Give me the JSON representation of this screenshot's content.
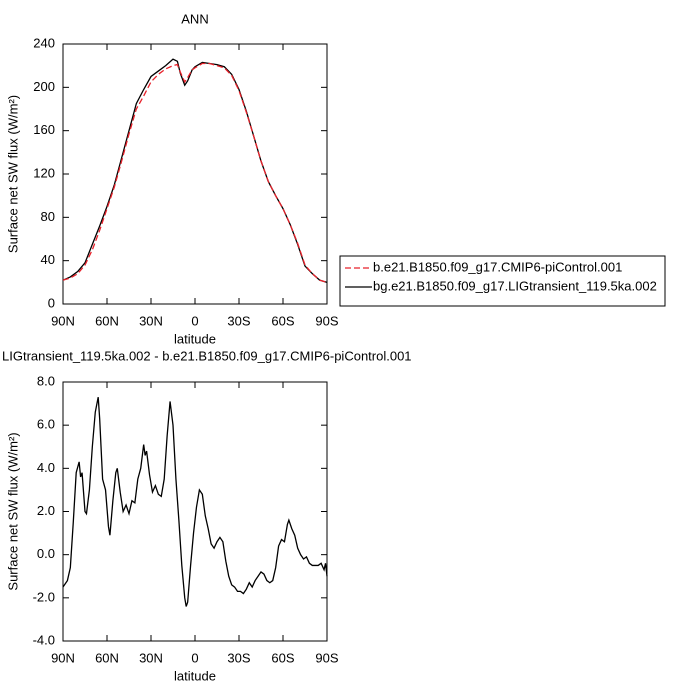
{
  "chart_data": [
    {
      "type": "line",
      "title": "ANN",
      "xlabel": "latitude",
      "ylabel": "Surface net SW flux (W/m²)",
      "x": [
        90,
        85,
        80,
        75,
        70,
        65,
        60,
        55,
        50,
        45,
        40,
        35,
        30,
        25,
        20,
        15,
        12,
        10,
        7,
        5,
        2,
        0,
        -5,
        -10,
        -15,
        -20,
        -25,
        -30,
        -35,
        -40,
        -45,
        -50,
        -55,
        -60,
        -65,
        -70,
        -75,
        -80,
        -85,
        -90
      ],
      "series": [
        {
          "name": "b.e21.B1850.f09_g17.CMIP6-piControl.001",
          "color": "#e8212a",
          "dash": true,
          "values": [
            22,
            24,
            28,
            36,
            50,
            68,
            88,
            108,
            132,
            157,
            180,
            192,
            205,
            212,
            217,
            220,
            221,
            214,
            205,
            209,
            216,
            218,
            222,
            222,
            220,
            218,
            211,
            197,
            177,
            155,
            132,
            113,
            100,
            88,
            73,
            56,
            36,
            28,
            22,
            20
          ]
        },
        {
          "name": "bg.e21.B1850.f09_g17.LIGtransient_119.5ka.002",
          "color": "#000000",
          "dash": false,
          "values": [
            22,
            25,
            30,
            38,
            55,
            72,
            90,
            110,
            135,
            160,
            185,
            198,
            210,
            215,
            220,
            226,
            224,
            213,
            202,
            206,
            216,
            219,
            223,
            222,
            221,
            219,
            212,
            198,
            178,
            155,
            132,
            113,
            100,
            88,
            73,
            55,
            35,
            28,
            22,
            20
          ]
        }
      ],
      "xlim": [
        90,
        -90
      ],
      "xticks": [
        {
          "value": 90,
          "label": "90N"
        },
        {
          "value": 60,
          "label": "60N"
        },
        {
          "value": 30,
          "label": "30N"
        },
        0,
        {
          "value": -30,
          "label": "30S"
        },
        {
          "value": -60,
          "label": "60S"
        },
        {
          "value": -90,
          "label": "90S"
        }
      ],
      "ylim": [
        0,
        240
      ],
      "yticks": [
        0,
        40,
        80,
        120,
        160,
        200,
        240
      ],
      "legend": "right"
    },
    {
      "type": "line",
      "title": "LIGtransient_119.5ka.002 - b.e21.B1850.f09_g17.CMIP6-piControl.001",
      "xlabel": "latitude",
      "ylabel": "Surface net SW flux (W/m²)",
      "color": "#000000",
      "x": [
        90,
        87,
        85,
        83,
        81,
        79,
        78,
        77,
        75,
        74,
        72,
        70,
        68,
        66,
        65,
        63,
        61,
        59,
        58,
        56,
        54,
        53,
        51,
        49,
        47,
        45,
        43,
        41,
        39,
        37,
        35,
        34,
        33,
        31,
        29,
        27,
        25,
        23,
        21,
        19,
        17,
        15,
        13,
        11,
        9,
        7,
        6,
        5,
        3,
        1,
        -1,
        -3,
        -5,
        -7,
        -9,
        -11,
        -13,
        -15,
        -17,
        -19,
        -21,
        -23,
        -25,
        -27,
        -29,
        -31,
        -33,
        -35,
        -37,
        -39,
        -41,
        -43,
        -45,
        -47,
        -49,
        -51,
        -53,
        -55,
        -57,
        -59,
        -61,
        -63,
        -64,
        -66,
        -68,
        -70,
        -72,
        -74,
        -76,
        -78,
        -80,
        -82,
        -84,
        -86,
        -88,
        -89,
        -90
      ],
      "values": [
        -1.5,
        -1.2,
        -0.6,
        1.5,
        3.8,
        4.3,
        3.6,
        3.8,
        2.0,
        1.9,
        3.0,
        5.0,
        6.6,
        7.3,
        6.3,
        3.5,
        3.0,
        1.3,
        0.9,
        2.5,
        3.8,
        4.0,
        2.9,
        2.0,
        2.3,
        1.9,
        2.5,
        2.4,
        3.5,
        4.0,
        5.1,
        4.6,
        4.8,
        3.7,
        2.9,
        3.2,
        2.8,
        2.7,
        3.5,
        5.5,
        7.1,
        6.0,
        3.5,
        1.6,
        -0.5,
        -2.0,
        -2.4,
        -2.2,
        -0.5,
        1.0,
        2.2,
        3.0,
        2.8,
        1.8,
        1.2,
        0.5,
        0.3,
        0.6,
        0.8,
        0.6,
        -0.3,
        -1.0,
        -1.4,
        -1.5,
        -1.7,
        -1.7,
        -1.8,
        -1.6,
        -1.3,
        -1.5,
        -1.2,
        -1.0,
        -0.8,
        -0.9,
        -1.2,
        -1.3,
        -1.2,
        -0.6,
        0.4,
        0.7,
        0.6,
        1.4,
        1.6,
        1.2,
        0.9,
        0.3,
        0.0,
        -0.2,
        -0.1,
        -0.4,
        -0.5,
        -0.5,
        -0.5,
        -0.4,
        -0.7,
        -0.4,
        -1.0
      ],
      "xlim": [
        90,
        -90
      ],
      "xticks": [
        {
          "value": 90,
          "label": "90N"
        },
        {
          "value": 60,
          "label": "60N"
        },
        {
          "value": 30,
          "label": "30N"
        },
        0,
        {
          "value": -30,
          "label": "30S"
        },
        {
          "value": -60,
          "label": "60S"
        },
        {
          "value": -90,
          "label": "90S"
        }
      ],
      "ylim": [
        -4,
        8
      ],
      "yticks": [
        {
          "value": -4,
          "label": "-4.0"
        },
        {
          "value": -2,
          "label": "-2.0"
        },
        {
          "value": 0,
          "label": "0.0"
        },
        {
          "value": 2,
          "label": "2.0"
        },
        {
          "value": 4,
          "label": "4.0"
        },
        {
          "value": 6,
          "label": "6.0"
        },
        {
          "value": 8,
          "label": "8.0"
        }
      ]
    }
  ]
}
